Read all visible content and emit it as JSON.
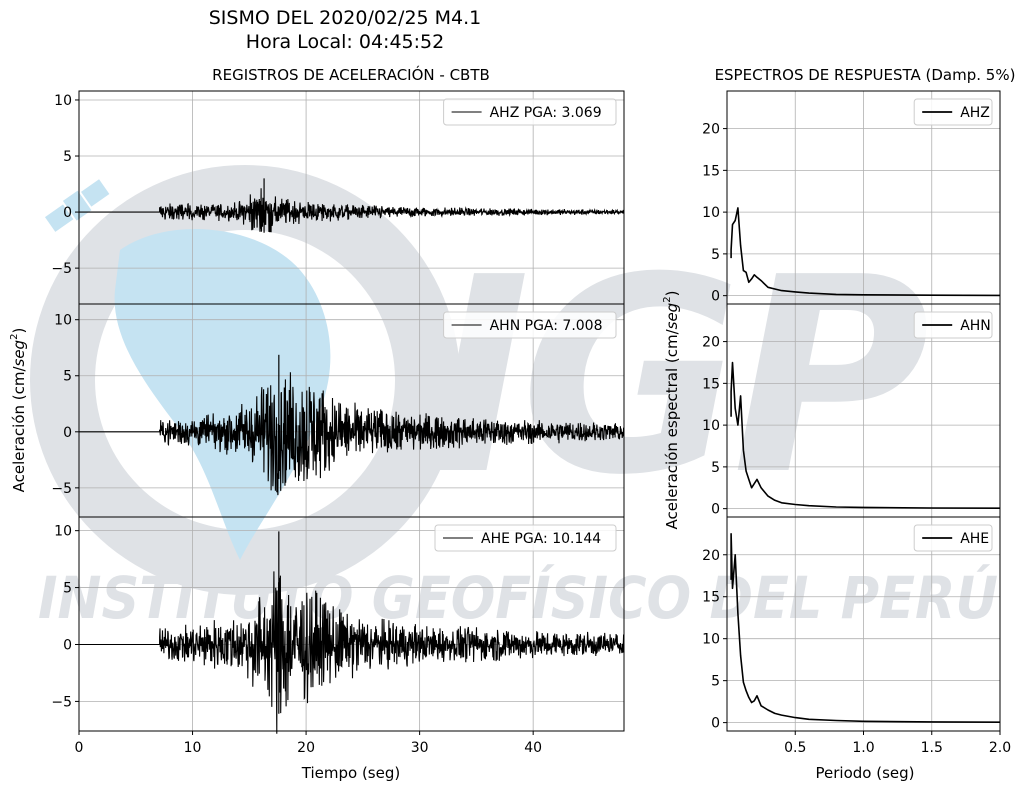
{
  "figure": {
    "title_line1": "SISMO DEL 2020/02/25 M4.1",
    "title_line2": "Hora Local: 04:45:52"
  },
  "watermark": {
    "logo_text": "IGP",
    "institution": "INSTITUTO GEOFÍSICO DEL PERÚ"
  },
  "colors": {
    "trace": "#000000",
    "grid": "#b0b0b0",
    "watermark_blue": "#c5e3f2",
    "watermark_grey": "#d2d6da"
  },
  "chart_data": [
    {
      "type": "line",
      "title": "REGISTROS DE ACELERACIÓN - CBTB",
      "xlabel": "Tiempo (seg)",
      "ylabel": "Aceleración (cm/seg²)",
      "ylabel_base": "Aceleración (cm/",
      "ylabel_unit": "seg",
      "ylabel_exp": "2",
      "ylabel_close": ")",
      "xlim": [
        0,
        48
      ],
      "xticks": [
        "0",
        "10",
        "20",
        "30",
        "40"
      ],
      "xtick_values": [
        0,
        10,
        20,
        30,
        40
      ],
      "grid": true,
      "legend_position": "upper right",
      "panels": [
        {
          "name": "AHZ",
          "legend": "AHZ PGA: 3.069",
          "pga": 3.069,
          "ylim": [
            -8.2,
            10.8
          ],
          "yticks": [
            -5,
            0,
            5,
            10
          ],
          "ytick_labels": [
            "−5",
            "0",
            "5",
            "10"
          ],
          "signal_start": 7.1,
          "envelope": [
            [
              7.1,
              0.9
            ],
            [
              10,
              0.75
            ],
            [
              14,
              0.9
            ],
            [
              16.3,
              2.4
            ],
            [
              17.5,
              1.3
            ],
            [
              20,
              1.0
            ],
            [
              24,
              0.7
            ],
            [
              30,
              0.45
            ],
            [
              40,
              0.3
            ],
            [
              48,
              0.22
            ]
          ]
        },
        {
          "name": "AHN",
          "legend": "AHN PGA: 7.008",
          "pga": 7.008,
          "ylim": [
            -7.6,
            11.4
          ],
          "yticks": [
            -5,
            0,
            5,
            10
          ],
          "ytick_labels": [
            "−5",
            "0",
            "5",
            "10"
          ],
          "signal_start": 7.1,
          "envelope": [
            [
              7.1,
              1.1
            ],
            [
              11,
              1.5
            ],
            [
              14,
              2.3
            ],
            [
              16,
              4.2
            ],
            [
              17.6,
              6.6
            ],
            [
              19,
              5.0
            ],
            [
              20.3,
              5.8
            ],
            [
              22,
              3.5
            ],
            [
              25,
              2.4
            ],
            [
              30,
              1.7
            ],
            [
              40,
              1.1
            ],
            [
              48,
              0.9
            ]
          ]
        },
        {
          "name": "AHE",
          "legend": "AHE PGA: 10.144",
          "pga": 10.144,
          "ylim": [
            -7.6,
            11.2
          ],
          "yticks": [
            -5,
            0,
            5,
            10
          ],
          "ytick_labels": [
            "−5",
            "0",
            "5",
            "10"
          ],
          "signal_start": 7.1,
          "envelope": [
            [
              7.1,
              1.5
            ],
            [
              11,
              2.0
            ],
            [
              14,
              2.6
            ],
            [
              16.5,
              4.8
            ],
            [
              17.6,
              8.6
            ],
            [
              19,
              5.0
            ],
            [
              20.2,
              5.4
            ],
            [
              22,
              3.8
            ],
            [
              25,
              2.6
            ],
            [
              30,
              1.8
            ],
            [
              40,
              1.3
            ],
            [
              48,
              1.0
            ]
          ]
        }
      ]
    },
    {
      "type": "line",
      "title": "ESPECTROS DE RESPUESTA (Damp. 5%)",
      "xlabel": "Periodo (seg)",
      "ylabel": "Aceleración espectral (cm/seg²)",
      "ylabel_base": "Aceleración espectral (cm/",
      "ylabel_unit": "seg",
      "ylabel_exp": "2",
      "ylabel_close": ")",
      "xlim": [
        0,
        2.0
      ],
      "xticks": [
        "0.5",
        "1.0",
        "1.5",
        "2.0"
      ],
      "xtick_values": [
        0.5,
        1.0,
        1.5,
        2.0
      ],
      "grid": true,
      "legend_position": "upper right",
      "panels": [
        {
          "name": "AHZ",
          "legend": "AHZ",
          "ylim": [
            -1,
            24.5
          ],
          "yticks": [
            0,
            5,
            10,
            15,
            20
          ],
          "ytick_labels": [
            "0",
            "5",
            "10",
            "15",
            "20"
          ],
          "x": [
            0,
            0.02,
            0.04,
            0.06,
            0.08,
            0.1,
            0.12,
            0.14,
            0.16,
            0.18,
            0.2,
            0.22,
            0.25,
            0.3,
            0.35,
            0.4,
            0.5,
            0.6,
            0.8,
            1.0,
            1.5,
            2.0
          ],
          "y": [
            4.5,
            5.5,
            8.5,
            9.0,
            10.5,
            6.0,
            3.0,
            2.8,
            1.6,
            2.0,
            2.5,
            2.2,
            1.8,
            1.0,
            0.8,
            0.6,
            0.45,
            0.3,
            0.15,
            0.1,
            0.05,
            0.03
          ]
        },
        {
          "name": "AHN",
          "legend": "AHN",
          "ylim": [
            -1,
            24.5
          ],
          "yticks": [
            0,
            5,
            10,
            15,
            20
          ],
          "ytick_labels": [
            "0",
            "5",
            "10",
            "15",
            "20"
          ],
          "x": [
            0,
            0.02,
            0.04,
            0.06,
            0.08,
            0.1,
            0.12,
            0.14,
            0.16,
            0.18,
            0.2,
            0.22,
            0.25,
            0.3,
            0.35,
            0.4,
            0.5,
            0.6,
            0.8,
            1.0,
            1.5,
            2.0
          ],
          "y": [
            11.0,
            14.0,
            17.5,
            12.0,
            10.0,
            13.5,
            7.0,
            4.5,
            3.5,
            2.5,
            3.0,
            3.5,
            2.5,
            1.5,
            1.0,
            0.7,
            0.5,
            0.35,
            0.2,
            0.15,
            0.08,
            0.05
          ]
        },
        {
          "name": "AHE",
          "legend": "AHE",
          "ylim": [
            -1,
            24.5
          ],
          "yticks": [
            0,
            5,
            10,
            15,
            20
          ],
          "ytick_labels": [
            "0",
            "5",
            "10",
            "15",
            "20"
          ],
          "x": [
            0,
            0.02,
            0.04,
            0.06,
            0.08,
            0.1,
            0.12,
            0.14,
            0.16,
            0.18,
            0.2,
            0.22,
            0.25,
            0.3,
            0.35,
            0.4,
            0.5,
            0.6,
            0.8,
            1.0,
            1.5,
            2.0
          ],
          "y": [
            17.0,
            22.5,
            16.0,
            20.0,
            13.0,
            8.0,
            4.8,
            3.8,
            3.0,
            2.4,
            2.6,
            3.2,
            2.0,
            1.5,
            1.1,
            0.9,
            0.6,
            0.4,
            0.25,
            0.15,
            0.08,
            0.05
          ]
        }
      ]
    }
  ]
}
